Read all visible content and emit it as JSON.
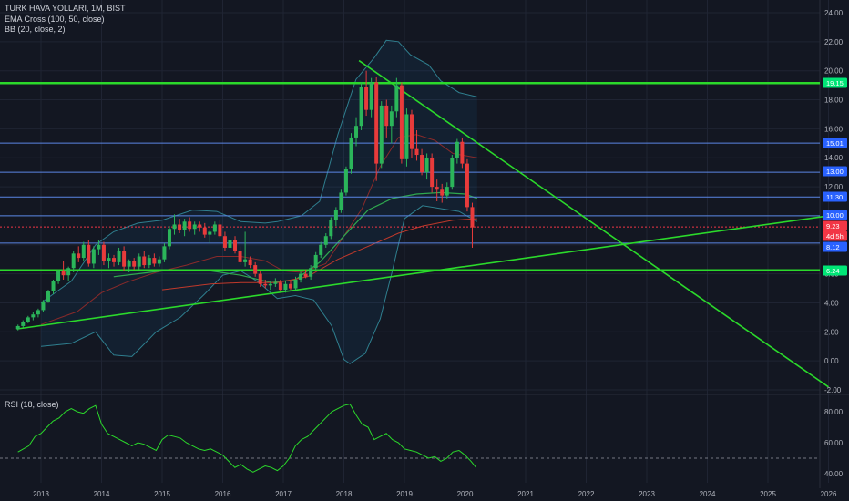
{
  "legend": {
    "symbol": "TURK HAVA YOLLARI, 1M, BIST",
    "ema": "EMA Cross (100, 50, close)",
    "bb": "BB (20, close, 2)",
    "rsi": "RSI (18, close)"
  },
  "chart_data": {
    "type": "candlestick",
    "y_axis": {
      "min": -2,
      "max": 24,
      "ticks": [
        -2,
        0,
        2,
        4,
        6,
        8,
        10,
        12,
        14,
        16,
        18,
        20,
        22,
        24
      ]
    },
    "x_axis": {
      "ticks": [
        "2013",
        "2014",
        "2015",
        "2016",
        "2017",
        "2018",
        "2019",
        "2020",
        "2021",
        "2022",
        "2023",
        "2024",
        "2025",
        "2026"
      ]
    },
    "price_tags": [
      {
        "value": "19.15",
        "color": "#00e676"
      },
      {
        "value": "15.01",
        "color": "#2962ff"
      },
      {
        "value": "13.00",
        "color": "#2962ff"
      },
      {
        "value": "11.30",
        "color": "#2962ff"
      },
      {
        "value": "10.00",
        "color": "#2962ff"
      },
      {
        "value": "9.23",
        "color": "#f23645"
      },
      {
        "value": "4d 5h",
        "color": "#f23645"
      },
      {
        "value": "8.12",
        "color": "#2962ff"
      },
      {
        "value": "6.24",
        "color": "#00e676"
      }
    ],
    "horizontal_levels": [
      {
        "y": 19.15,
        "color": "#2bd92b",
        "width": 2.5
      },
      {
        "y": 15.01,
        "color": "#5b86e5",
        "width": 1
      },
      {
        "y": 13.0,
        "color": "#5b86e5",
        "width": 1
      },
      {
        "y": 11.3,
        "color": "#5b86e5",
        "width": 1
      },
      {
        "y": 10.0,
        "color": "#5b86e5",
        "width": 1
      },
      {
        "y": 9.23,
        "color": "#f23645",
        "width": 1,
        "dash": true
      },
      {
        "y": 8.12,
        "color": "#5b86e5",
        "width": 1
      },
      {
        "y": 6.24,
        "color": "#2bd92b",
        "width": 2.5
      }
    ],
    "trendlines": [
      {
        "from": [
          2012.6,
          2.2
        ],
        "to": [
          2026.0,
          10.0
        ],
        "color": "#2bd92b"
      },
      {
        "from": [
          2018.25,
          20.7
        ],
        "to": [
          2026.0,
          -1.8
        ],
        "color": "#2bd92b"
      }
    ],
    "candles_start": 2012.62,
    "candles_monthly": [
      [
        2.2,
        2.5,
        2.1,
        2.4
      ],
      [
        2.4,
        2.8,
        2.3,
        2.7
      ],
      [
        2.7,
        3.1,
        2.6,
        3.0
      ],
      [
        3.0,
        3.4,
        2.8,
        3.2
      ],
      [
        3.2,
        3.6,
        3.0,
        3.5
      ],
      [
        3.5,
        4.2,
        3.4,
        4.1
      ],
      [
        4.1,
        4.9,
        4.0,
        4.8
      ],
      [
        4.8,
        5.6,
        4.6,
        5.5
      ],
      [
        5.5,
        6.3,
        5.3,
        6.2
      ],
      [
        6.2,
        6.9,
        5.6,
        5.9
      ],
      [
        5.9,
        6.5,
        5.5,
        6.4
      ],
      [
        6.4,
        7.6,
        6.1,
        7.4
      ],
      [
        7.4,
        7.9,
        6.8,
        7.1
      ],
      [
        7.1,
        8.2,
        6.9,
        8.0
      ],
      [
        8.0,
        8.3,
        6.5,
        6.7
      ],
      [
        6.7,
        7.9,
        6.4,
        7.7
      ],
      [
        7.7,
        8.3,
        7.3,
        8.0
      ],
      [
        8.0,
        8.2,
        6.6,
        6.9
      ],
      [
        6.9,
        7.4,
        6.4,
        7.1
      ],
      [
        7.1,
        7.3,
        6.5,
        6.8
      ],
      [
        6.8,
        7.8,
        6.6,
        7.6
      ],
      [
        7.6,
        7.9,
        6.2,
        6.5
      ],
      [
        6.5,
        7.0,
        6.1,
        6.9
      ],
      [
        6.9,
        7.1,
        6.3,
        6.5
      ],
      [
        6.5,
        7.4,
        6.3,
        7.2
      ],
      [
        7.2,
        7.6,
        6.4,
        6.6
      ],
      [
        6.6,
        7.3,
        6.4,
        7.1
      ],
      [
        7.1,
        7.4,
        6.5,
        6.7
      ],
      [
        6.7,
        7.2,
        6.5,
        7.0
      ],
      [
        7.0,
        8.1,
        6.8,
        7.9
      ],
      [
        7.9,
        9.3,
        7.7,
        9.1
      ],
      [
        9.1,
        10.1,
        8.7,
        9.4
      ],
      [
        9.4,
        9.8,
        8.8,
        9.0
      ],
      [
        9.0,
        9.8,
        8.6,
        9.6
      ],
      [
        9.6,
        9.9,
        8.9,
        9.1
      ],
      [
        9.1,
        9.6,
        8.7,
        9.4
      ],
      [
        9.4,
        9.6,
        8.9,
        9.2
      ],
      [
        9.2,
        9.5,
        8.5,
        8.7
      ],
      [
        8.7,
        9.0,
        8.1,
        8.9
      ],
      [
        8.9,
        9.6,
        8.7,
        9.4
      ],
      [
        9.4,
        9.7,
        8.5,
        8.6
      ],
      [
        8.6,
        8.9,
        7.6,
        7.8
      ],
      [
        7.8,
        8.5,
        7.6,
        8.3
      ],
      [
        8.3,
        8.6,
        7.4,
        7.6
      ],
      [
        7.6,
        7.9,
        6.6,
        6.8
      ],
      [
        6.8,
        8.9,
        6.5,
        7.0
      ],
      [
        7.0,
        7.2,
        6.4,
        6.6
      ],
      [
        6.6,
        6.8,
        5.8,
        6.0
      ],
      [
        6.0,
        6.2,
        5.1,
        5.3
      ],
      [
        5.3,
        5.6,
        5.0,
        5.2
      ],
      [
        5.2,
        5.5,
        4.9,
        5.3
      ],
      [
        5.3,
        5.7,
        5.1,
        5.4
      ],
      [
        5.4,
        5.6,
        4.8,
        4.9
      ],
      [
        4.9,
        5.5,
        4.7,
        5.3
      ],
      [
        5.3,
        5.5,
        4.9,
        5.0
      ],
      [
        5.0,
        5.8,
        4.9,
        5.6
      ],
      [
        5.6,
        6.2,
        5.4,
        6.0
      ],
      [
        6.0,
        6.3,
        5.7,
        5.8
      ],
      [
        5.8,
        6.6,
        5.6,
        6.4
      ],
      [
        6.4,
        7.5,
        6.2,
        7.3
      ],
      [
        7.3,
        8.2,
        7.1,
        8.0
      ],
      [
        8.0,
        8.8,
        7.8,
        8.6
      ],
      [
        8.6,
        9.9,
        8.4,
        9.7
      ],
      [
        9.7,
        10.6,
        9.3,
        10.4
      ],
      [
        10.4,
        11.8,
        10.2,
        11.6
      ],
      [
        11.6,
        13.4,
        11.4,
        13.2
      ],
      [
        13.2,
        15.7,
        12.9,
        15.4
      ],
      [
        15.4,
        16.8,
        14.8,
        16.2
      ],
      [
        16.2,
        19.2,
        15.9,
        18.9
      ],
      [
        18.9,
        20.0,
        16.9,
        17.3
      ],
      [
        17.3,
        19.5,
        16.8,
        19.2
      ],
      [
        19.2,
        19.6,
        12.4,
        13.6
      ],
      [
        13.6,
        17.9,
        13.3,
        17.6
      ],
      [
        17.6,
        18.0,
        15.4,
        16.2
      ],
      [
        16.2,
        17.6,
        15.0,
        17.2
      ],
      [
        17.2,
        19.5,
        16.8,
        19.0
      ],
      [
        19.0,
        19.2,
        13.6,
        13.9
      ],
      [
        13.9,
        17.4,
        13.4,
        17.0
      ],
      [
        17.0,
        17.3,
        14.0,
        14.6
      ],
      [
        14.6,
        15.9,
        13.8,
        14.2
      ],
      [
        14.2,
        14.6,
        12.8,
        13.0
      ],
      [
        13.0,
        14.3,
        12.5,
        14.0
      ],
      [
        14.0,
        14.3,
        11.6,
        12.0
      ],
      [
        12.0,
        12.5,
        11.0,
        11.8
      ],
      [
        11.8,
        12.2,
        10.9,
        11.4
      ],
      [
        11.4,
        12.3,
        11.2,
        12.0
      ],
      [
        12.0,
        14.2,
        11.8,
        14.0
      ],
      [
        14.0,
        15.3,
        13.6,
        15.1
      ],
      [
        15.1,
        15.4,
        13.3,
        13.6
      ],
      [
        13.6,
        13.9,
        10.3,
        10.6
      ],
      [
        10.6,
        10.9,
        7.8,
        9.2
      ]
    ],
    "ema_100": [
      [
        2014.2,
        5.8
      ],
      [
        2015.0,
        6.2
      ],
      [
        2015.8,
        6.2
      ],
      [
        2016.3,
        5.9
      ],
      [
        2016.8,
        5.4
      ],
      [
        2017.2,
        5.6
      ],
      [
        2017.6,
        6.8
      ],
      [
        2018.0,
        8.6
      ],
      [
        2018.4,
        10.4
      ],
      [
        2018.8,
        11.2
      ],
      [
        2019.2,
        11.5
      ],
      [
        2019.6,
        11.6
      ],
      [
        2020.0,
        11.5
      ],
      [
        2020.2,
        11.2
      ]
    ],
    "ema_50": [
      [
        2015.0,
        4.9
      ],
      [
        2015.8,
        5.3
      ],
      [
        2016.3,
        5.4
      ],
      [
        2016.9,
        5.4
      ],
      [
        2017.4,
        5.8
      ],
      [
        2017.9,
        7.0
      ],
      [
        2018.4,
        7.9
      ],
      [
        2018.9,
        8.8
      ],
      [
        2019.3,
        9.3
      ],
      [
        2019.8,
        9.7
      ],
      [
        2020.2,
        9.8
      ]
    ],
    "bb_upper": [
      [
        2013.0,
        4.0
      ],
      [
        2013.5,
        5.5
      ],
      [
        2013.9,
        8.0
      ],
      [
        2014.2,
        8.9
      ],
      [
        2014.6,
        9.5
      ],
      [
        2015.0,
        9.7
      ],
      [
        2015.5,
        10.4
      ],
      [
        2015.9,
        10.3
      ],
      [
        2016.3,
        9.6
      ],
      [
        2016.7,
        9.5
      ],
      [
        2016.9,
        9.6
      ],
      [
        2017.1,
        9.8
      ],
      [
        2017.3,
        10.0
      ],
      [
        2017.6,
        11.0
      ],
      [
        2017.9,
        15.6
      ],
      [
        2018.2,
        19.4
      ],
      [
        2018.5,
        20.9
      ],
      [
        2018.7,
        22.1
      ],
      [
        2018.9,
        22.0
      ],
      [
        2019.1,
        21.1
      ],
      [
        2019.4,
        20.4
      ],
      [
        2019.6,
        19.3
      ],
      [
        2019.9,
        18.5
      ],
      [
        2020.2,
        18.2
      ]
    ],
    "bb_lower": [
      [
        2013.0,
        1.0
      ],
      [
        2013.5,
        1.2
      ],
      [
        2013.9,
        2.0
      ],
      [
        2014.2,
        0.4
      ],
      [
        2014.5,
        0.3
      ],
      [
        2014.9,
        2.0
      ],
      [
        2015.3,
        3.0
      ],
      [
        2015.7,
        4.6
      ],
      [
        2016.0,
        5.9
      ],
      [
        2016.3,
        6.2
      ],
      [
        2016.6,
        5.4
      ],
      [
        2016.9,
        4.3
      ],
      [
        2017.2,
        4.5
      ],
      [
        2017.5,
        4.2
      ],
      [
        2017.8,
        2.4
      ],
      [
        2018.0,
        0.1
      ],
      [
        2018.1,
        -0.2
      ],
      [
        2018.35,
        0.5
      ],
      [
        2018.6,
        2.9
      ],
      [
        2018.8,
        6.2
      ],
      [
        2019.0,
        9.8
      ],
      [
        2019.3,
        10.7
      ],
      [
        2019.6,
        10.5
      ],
      [
        2019.9,
        10.3
      ],
      [
        2020.2,
        9.6
      ]
    ],
    "bb_basis": [
      [
        2013.0,
        2.5
      ],
      [
        2013.6,
        3.4
      ],
      [
        2014.0,
        4.7
      ],
      [
        2014.4,
        5.4
      ],
      [
        2014.9,
        6.1
      ],
      [
        2015.4,
        6.6
      ],
      [
        2015.9,
        7.2
      ],
      [
        2016.3,
        7.2
      ],
      [
        2016.7,
        6.9
      ],
      [
        2017.0,
        6.2
      ],
      [
        2017.3,
        6.1
      ],
      [
        2017.7,
        6.7
      ],
      [
        2018.0,
        8.6
      ],
      [
        2018.3,
        10.5
      ],
      [
        2018.6,
        13.4
      ],
      [
        2018.9,
        15.4
      ],
      [
        2019.2,
        15.6
      ],
      [
        2019.5,
        15.2
      ],
      [
        2019.8,
        14.3
      ],
      [
        2020.2,
        14.0
      ]
    ],
    "rsi": {
      "y_axis": {
        "min": 35,
        "max": 88,
        "ticks": [
          40,
          60,
          80
        ]
      },
      "dashed_level": 50,
      "values": [
        [
          2012.62,
          54
        ],
        [
          2012.8,
          58
        ],
        [
          2012.9,
          64
        ],
        [
          2013.0,
          66
        ],
        [
          2013.1,
          70
        ],
        [
          2013.2,
          74
        ],
        [
          2013.3,
          76
        ],
        [
          2013.4,
          80
        ],
        [
          2013.5,
          82
        ],
        [
          2013.6,
          80
        ],
        [
          2013.7,
          79
        ],
        [
          2013.8,
          82
        ],
        [
          2013.9,
          84
        ],
        [
          2014.0,
          72
        ],
        [
          2014.1,
          66
        ],
        [
          2014.2,
          64
        ],
        [
          2014.3,
          62
        ],
        [
          2014.4,
          60
        ],
        [
          2014.5,
          58
        ],
        [
          2014.6,
          60
        ],
        [
          2014.7,
          59
        ],
        [
          2014.8,
          57
        ],
        [
          2014.9,
          55
        ],
        [
          2015.0,
          62
        ],
        [
          2015.1,
          65
        ],
        [
          2015.2,
          64
        ],
        [
          2015.3,
          63
        ],
        [
          2015.4,
          60
        ],
        [
          2015.5,
          58
        ],
        [
          2015.6,
          56
        ],
        [
          2015.7,
          55
        ],
        [
          2015.8,
          56
        ],
        [
          2015.9,
          54
        ],
        [
          2016.0,
          52
        ],
        [
          2016.1,
          48
        ],
        [
          2016.2,
          44
        ],
        [
          2016.3,
          46
        ],
        [
          2016.4,
          43
        ],
        [
          2016.5,
          41
        ],
        [
          2016.6,
          43
        ],
        [
          2016.7,
          45
        ],
        [
          2016.8,
          44
        ],
        [
          2016.9,
          42
        ],
        [
          2017.0,
          45
        ],
        [
          2017.1,
          50
        ],
        [
          2017.2,
          58
        ],
        [
          2017.3,
          62
        ],
        [
          2017.4,
          64
        ],
        [
          2017.5,
          68
        ],
        [
          2017.6,
          72
        ],
        [
          2017.7,
          76
        ],
        [
          2017.8,
          80
        ],
        [
          2017.9,
          82
        ],
        [
          2018.0,
          84
        ],
        [
          2018.1,
          85
        ],
        [
          2018.2,
          78
        ],
        [
          2018.3,
          72
        ],
        [
          2018.4,
          70
        ],
        [
          2018.5,
          62
        ],
        [
          2018.6,
          64
        ],
        [
          2018.7,
          66
        ],
        [
          2018.8,
          62
        ],
        [
          2018.9,
          60
        ],
        [
          2019.0,
          56
        ],
        [
          2019.1,
          55
        ],
        [
          2019.2,
          54
        ],
        [
          2019.3,
          52
        ],
        [
          2019.4,
          50
        ],
        [
          2019.5,
          51
        ],
        [
          2019.6,
          48
        ],
        [
          2019.7,
          50
        ],
        [
          2019.8,
          54
        ],
        [
          2019.9,
          55
        ],
        [
          2020.0,
          52
        ],
        [
          2020.1,
          48
        ],
        [
          2020.18,
          44
        ]
      ]
    }
  }
}
